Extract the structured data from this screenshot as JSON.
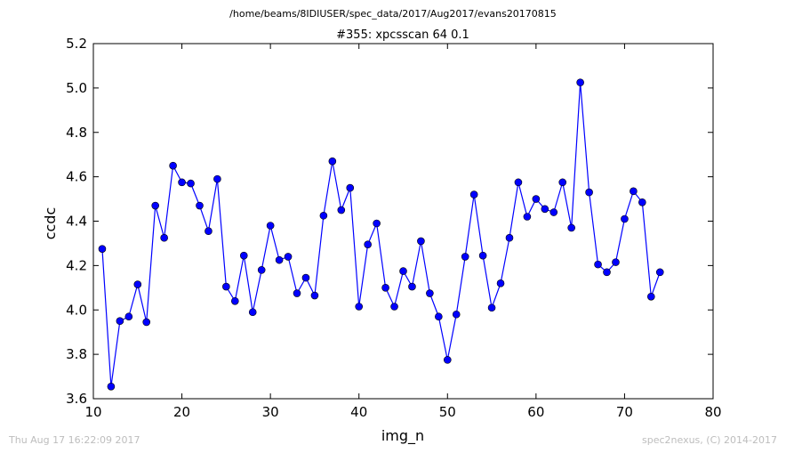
{
  "header": {
    "path": "/home/beams/8IDIUSER/spec_data/2017/Aug2017/evans20170815"
  },
  "footer": {
    "timestamp": "Thu Aug 17 16:22:09 2017",
    "credit": "spec2nexus, (C) 2014-2017"
  },
  "chart_data": {
    "type": "line",
    "title": "#355: xpcsscan 64 0.1",
    "xlabel": "img_n",
    "ylabel": "ccdc",
    "xlim": [
      10,
      80
    ],
    "ylim": [
      3.6,
      5.2
    ],
    "xticks": [
      "10",
      "20",
      "30",
      "40",
      "50",
      "60",
      "70",
      "80"
    ],
    "yticks": [
      "3.6",
      "3.8",
      "4.0",
      "4.2",
      "4.4",
      "4.6",
      "4.8",
      "5.0",
      "5.2"
    ],
    "grid": false,
    "marker": "circle",
    "color": "#0000ff",
    "series": [
      {
        "x": [
          11,
          12,
          13,
          14,
          15,
          16,
          17,
          18,
          19,
          20,
          21,
          22,
          23,
          24,
          25,
          26,
          27,
          28,
          29,
          30,
          31,
          32,
          33,
          34,
          35,
          36,
          37,
          38,
          39,
          40,
          41,
          42,
          43,
          44,
          45,
          46,
          47,
          48,
          49,
          50,
          51,
          52,
          53,
          54,
          55,
          56,
          57,
          58,
          59,
          60,
          61,
          62,
          63,
          64,
          65,
          66,
          67,
          68,
          69,
          70,
          71,
          72,
          73,
          74
        ],
        "y": [
          4.275,
          3.655,
          3.95,
          3.97,
          4.115,
          3.945,
          4.47,
          4.325,
          4.65,
          4.575,
          4.57,
          4.47,
          4.355,
          4.59,
          4.105,
          4.04,
          4.245,
          3.99,
          4.18,
          4.38,
          4.225,
          4.24,
          4.075,
          4.145,
          4.065,
          4.425,
          4.67,
          4.45,
          4.55,
          4.015,
          4.295,
          4.39,
          4.1,
          4.015,
          4.175,
          4.105,
          4.31,
          4.075,
          3.97,
          3.775,
          3.98,
          4.24,
          4.52,
          4.245,
          4.01,
          4.12,
          4.325,
          4.575,
          4.42,
          4.5,
          4.455,
          4.44,
          4.575,
          4.37,
          5.025,
          4.53,
          4.205,
          4.17,
          4.215,
          4.41,
          4.535,
          4.485,
          4.06,
          4.17
        ]
      }
    ]
  }
}
